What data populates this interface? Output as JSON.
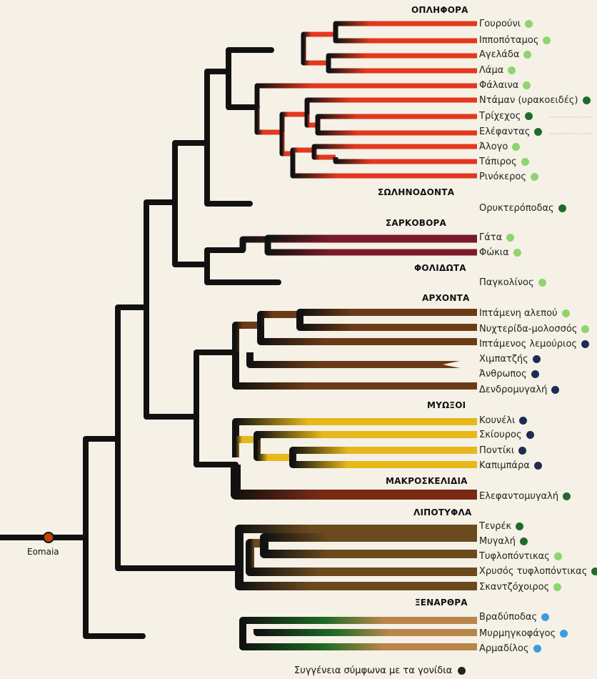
{
  "root_label": "Eomaia",
  "legend": {
    "text": "Συγγένεια σύμφωνα με τα γονίδια",
    "color": "#222222"
  },
  "group_labels": [
    "ΟΠΛΗΦΟΡΑ",
    "ΣΩΛΗΝΟΔΟΝΤΑ",
    "ΣΑΡΚΟΒΟΡΑ",
    "ΦΟΛΙΔΩΤΑ",
    "ΑΡΧΟΝΤΑ",
    "ΜΥΩΞΟΙ",
    "ΜΑΚΡΟΣΚΕΛΙΔΙΑ",
    "ΛΙΠΟΤΥΦΛΑ",
    "ΞΕΝΑΡΘΡΑ"
  ],
  "dot_colors": {
    "light_green": "#8fd46e",
    "dark_green": "#1f6b2f",
    "navy": "#1e2b52",
    "blue": "#3a9de0"
  },
  "clade_colors": {
    "ungulates": "#e3381f",
    "tubulidentata": "#ee8a1a",
    "carnivora": "#7a1a2a",
    "pholidota": "#c06a6a",
    "archonta": "#6b3b17",
    "glires": "#e6b81a",
    "macroscelidea": "#7a2a12",
    "insectivora": "#6b4a1e",
    "xenarthra": "#b8854a",
    "stem": "#111111",
    "xenarthra_stem": "#1d6b25"
  },
  "leaves": [
    {
      "name": "Γουρούνι",
      "dot": "light_green"
    },
    {
      "name": "Ιπποπόταμος",
      "dot": "light_green"
    },
    {
      "name": "Αγελάδα",
      "dot": "light_green"
    },
    {
      "name": "Λάμα",
      "dot": "light_green"
    },
    {
      "name": "Φάλαινα",
      "dot": "light_green"
    },
    {
      "name": "Ντάμαν (υρακοειδές)",
      "dot": "dark_green"
    },
    {
      "name": "Τρίχεχος",
      "dot": "dark_green"
    },
    {
      "name": "Ελέφαντας",
      "dot": "dark_green"
    },
    {
      "name": "Άλογο",
      "dot": "light_green"
    },
    {
      "name": "Τάπιρος",
      "dot": "light_green"
    },
    {
      "name": "Ρινόκερος",
      "dot": "light_green"
    },
    {
      "name": "Ορυκτερόποδας",
      "dot": "dark_green"
    },
    {
      "name": "Γάτα",
      "dot": "light_green"
    },
    {
      "name": "Φώκια",
      "dot": "light_green"
    },
    {
      "name": "Παγκολίνος",
      "dot": "light_green"
    },
    {
      "name": "Ιπτάμενη αλεπού",
      "dot": "light_green"
    },
    {
      "name": "Νυχτερίδα-μολοσσός",
      "dot": "light_green"
    },
    {
      "name": "Ιπτάμενος λεμούριος",
      "dot": "navy"
    },
    {
      "name": "Χιμπατζής",
      "dot": "navy"
    },
    {
      "name": "Άνθρωπος",
      "dot": "navy"
    },
    {
      "name": "Δενδρομυγαλή",
      "dot": "navy"
    },
    {
      "name": "Κουνέλι",
      "dot": "navy"
    },
    {
      "name": "Σκίουρος",
      "dot": "navy"
    },
    {
      "name": "Ποντίκι",
      "dot": "navy"
    },
    {
      "name": "Καπιμπάρα",
      "dot": "navy"
    },
    {
      "name": "Ελεφαντομυγαλή",
      "dot": "dark_green"
    },
    {
      "name": "Τενρέκ",
      "dot": "dark_green"
    },
    {
      "name": "Μυγαλή",
      "dot": "dark_green"
    },
    {
      "name": "Τυφλοπόντικας",
      "dot": "light_green"
    },
    {
      "name": "Χρυσός τυφλοπόντικας",
      "dot": "dark_green"
    },
    {
      "name": "Σκαντζόχοιρος",
      "dot": "light_green"
    },
    {
      "name": "Βραδύποδας",
      "dot": "blue"
    },
    {
      "name": "Μυρμηγκοφάγος",
      "dot": "blue"
    },
    {
      "name": "Αρμαδίλος",
      "dot": "blue"
    }
  ]
}
